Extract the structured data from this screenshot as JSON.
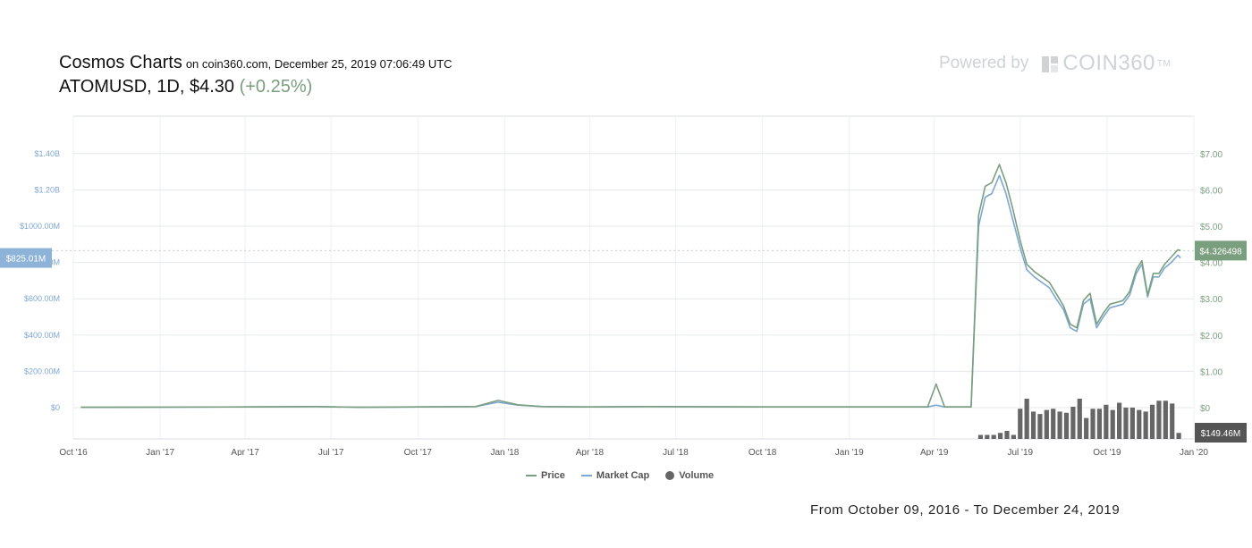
{
  "header": {
    "title": "Cosmos Charts",
    "subtitle": "on coin360.com, December 25, 2019 07:06:49 UTC",
    "pair": "ATOMUSD, 1D, $4.30",
    "change": "(+0.25%)"
  },
  "branding": {
    "powered_by": "Powered by",
    "brand": "COIN360",
    "trademark": "TM"
  },
  "footer": {
    "range": "From October 09, 2016 - To December 24, 2019"
  },
  "colors": {
    "price": "#7a9f7e",
    "market_cap": "#7da7d3",
    "volume": "#666666",
    "left_badge": "#8eb3d9",
    "right_badge": "#7a9f7e",
    "volume_badge": "#555555"
  },
  "chart_data": {
    "type": "line",
    "x_ticks": [
      "Oct '16",
      "Jan '17",
      "Apr '17",
      "Jul '17",
      "Oct '17",
      "Jan '18",
      "Apr '18",
      "Jul '18",
      "Oct '18",
      "Jan '19",
      "Apr '19",
      "Jul '19",
      "Oct '19",
      "Jan '20"
    ],
    "y_left_ticks": [
      "$1.40B",
      "$1.20B",
      "$1000.00M",
      "$800.00M",
      "$600.00M",
      "$400.00M",
      "$200.00M",
      "$0"
    ],
    "y_right_ticks": [
      "$7.00",
      "$6.00",
      "$5.00",
      "$4.00",
      "$3.00",
      "$2.00",
      "$1.00",
      "$0"
    ],
    "y_left_range": [
      0,
      1400000000
    ],
    "y_right_range": [
      0,
      7
    ],
    "current_market_cap_label": "$825.01M",
    "current_price_label": "$4.326498",
    "current_volume_label": "$149.46M",
    "legend": [
      "Price",
      "Market Cap",
      "Volume"
    ],
    "grid": true,
    "series": [
      {
        "name": "Price",
        "axis": "right",
        "points": [
          [
            "2016-10-09",
            0.01
          ],
          [
            "2017-04-01",
            0.02
          ],
          [
            "2017-06-15",
            0.03
          ],
          [
            "2017-08-01",
            0.01
          ],
          [
            "2017-12-01",
            0.03
          ],
          [
            "2017-12-25",
            0.2
          ],
          [
            "2018-01-15",
            0.08
          ],
          [
            "2018-02-10",
            0.03
          ],
          [
            "2018-04-01",
            0.02
          ],
          [
            "2018-06-01",
            0.03
          ],
          [
            "2018-10-01",
            0.02
          ],
          [
            "2019-01-01",
            0.02
          ],
          [
            "2019-03-25",
            0.02
          ],
          [
            "2019-04-03",
            0.65
          ],
          [
            "2019-04-12",
            0.02
          ],
          [
            "2019-05-10",
            0.02
          ],
          [
            "2019-05-18",
            5.3
          ],
          [
            "2019-05-25",
            6.1
          ],
          [
            "2019-06-01",
            6.2
          ],
          [
            "2019-06-09",
            6.7
          ],
          [
            "2019-06-16",
            6.2
          ],
          [
            "2019-06-23",
            5.5
          ],
          [
            "2019-07-01",
            4.6
          ],
          [
            "2019-07-08",
            3.95
          ],
          [
            "2019-07-16",
            3.75
          ],
          [
            "2019-07-24",
            3.6
          ],
          [
            "2019-08-01",
            3.45
          ],
          [
            "2019-08-08",
            3.15
          ],
          [
            "2019-08-16",
            2.8
          ],
          [
            "2019-08-23",
            2.3
          ],
          [
            "2019-08-30",
            2.2
          ],
          [
            "2019-09-06",
            2.95
          ],
          [
            "2019-09-13",
            3.15
          ],
          [
            "2019-09-20",
            2.3
          ],
          [
            "2019-09-27",
            2.6
          ],
          [
            "2019-10-04",
            2.85
          ],
          [
            "2019-10-11",
            2.9
          ],
          [
            "2019-10-18",
            2.95
          ],
          [
            "2019-10-25",
            3.2
          ],
          [
            "2019-11-01",
            3.8
          ],
          [
            "2019-11-07",
            4.05
          ],
          [
            "2019-11-13",
            3.1
          ],
          [
            "2019-11-19",
            3.7
          ],
          [
            "2019-11-25",
            3.7
          ],
          [
            "2019-12-01",
            3.95
          ],
          [
            "2019-12-08",
            4.15
          ],
          [
            "2019-12-15",
            4.35
          ],
          [
            "2019-12-18",
            4.326498
          ]
        ]
      },
      {
        "name": "Market Cap",
        "axis": "left",
        "points": [
          [
            "2016-10-09",
            2000000
          ],
          [
            "2017-04-01",
            4000000
          ],
          [
            "2017-06-15",
            6000000
          ],
          [
            "2017-08-01",
            2000000
          ],
          [
            "2017-12-01",
            6000000
          ],
          [
            "2017-12-25",
            30000000
          ],
          [
            "2018-01-15",
            14000000
          ],
          [
            "2018-02-10",
            6000000
          ],
          [
            "2018-04-01",
            4000000
          ],
          [
            "2018-06-01",
            6000000
          ],
          [
            "2018-10-01",
            4000000
          ],
          [
            "2019-01-01",
            4000000
          ],
          [
            "2019-03-25",
            4000000
          ],
          [
            "2019-04-03",
            14000000
          ],
          [
            "2019-04-12",
            4000000
          ],
          [
            "2019-05-10",
            4000000
          ],
          [
            "2019-05-18",
            1000000000
          ],
          [
            "2019-05-25",
            1160000000
          ],
          [
            "2019-06-01",
            1180000000
          ],
          [
            "2019-06-09",
            1280000000
          ],
          [
            "2019-06-16",
            1180000000
          ],
          [
            "2019-06-23",
            1040000000
          ],
          [
            "2019-07-01",
            880000000
          ],
          [
            "2019-07-08",
            760000000
          ],
          [
            "2019-07-16",
            720000000
          ],
          [
            "2019-07-24",
            690000000
          ],
          [
            "2019-08-01",
            660000000
          ],
          [
            "2019-08-08",
            600000000
          ],
          [
            "2019-08-16",
            540000000
          ],
          [
            "2019-08-23",
            440000000
          ],
          [
            "2019-08-30",
            420000000
          ],
          [
            "2019-09-06",
            570000000
          ],
          [
            "2019-09-13",
            600000000
          ],
          [
            "2019-09-20",
            440000000
          ],
          [
            "2019-09-27",
            500000000
          ],
          [
            "2019-10-04",
            550000000
          ],
          [
            "2019-10-11",
            560000000
          ],
          [
            "2019-10-18",
            570000000
          ],
          [
            "2019-10-25",
            620000000
          ],
          [
            "2019-11-01",
            740000000
          ],
          [
            "2019-11-07",
            790000000
          ],
          [
            "2019-11-13",
            610000000
          ],
          [
            "2019-11-19",
            720000000
          ],
          [
            "2019-11-25",
            720000000
          ],
          [
            "2019-12-01",
            770000000
          ],
          [
            "2019-12-08",
            800000000
          ],
          [
            "2019-12-15",
            840000000
          ],
          [
            "2019-12-18",
            825010000
          ]
        ]
      },
      {
        "name": "Volume",
        "axis": "volume",
        "bars": [
          [
            "2019-05-20",
            0.1
          ],
          [
            "2019-05-27",
            0.1
          ],
          [
            "2019-06-03",
            0.1
          ],
          [
            "2019-06-10",
            0.15
          ],
          [
            "2019-06-17",
            0.2
          ],
          [
            "2019-06-24",
            0.1
          ],
          [
            "2019-07-01",
            0.75
          ],
          [
            "2019-07-08",
            1.0
          ],
          [
            "2019-07-15",
            0.68
          ],
          [
            "2019-07-22",
            0.62
          ],
          [
            "2019-07-29",
            0.72
          ],
          [
            "2019-08-05",
            0.75
          ],
          [
            "2019-08-12",
            0.68
          ],
          [
            "2019-08-19",
            0.65
          ],
          [
            "2019-08-26",
            0.8
          ],
          [
            "2019-09-02",
            1.0
          ],
          [
            "2019-09-09",
            0.52
          ],
          [
            "2019-09-16",
            0.75
          ],
          [
            "2019-09-23",
            0.75
          ],
          [
            "2019-09-30",
            0.85
          ],
          [
            "2019-10-07",
            0.72
          ],
          [
            "2019-10-14",
            0.9
          ],
          [
            "2019-10-21",
            0.78
          ],
          [
            "2019-10-28",
            0.78
          ],
          [
            "2019-11-04",
            0.72
          ],
          [
            "2019-11-11",
            0.68
          ],
          [
            "2019-11-18",
            0.85
          ],
          [
            "2019-11-25",
            0.95
          ],
          [
            "2019-12-02",
            0.95
          ],
          [
            "2019-12-09",
            0.88
          ],
          [
            "2019-12-16",
            0.15
          ]
        ]
      }
    ]
  }
}
